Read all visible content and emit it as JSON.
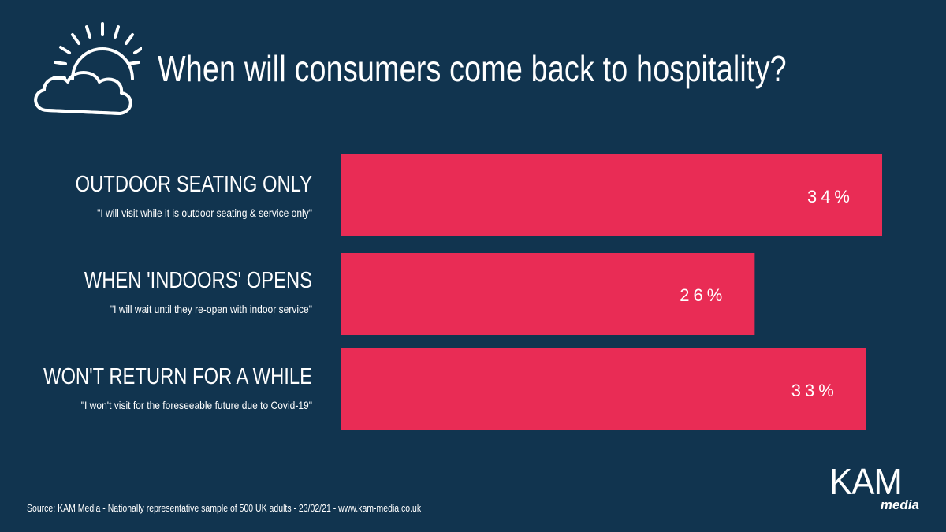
{
  "title": "When will consumers come back to hospitality?",
  "chart_data": {
    "type": "bar",
    "orientation": "horizontal",
    "title": "When will consumers come back to hospitality?",
    "categories": [
      "OUTDOOR SEATING ONLY",
      "WHEN 'INDOORS' OPENS",
      "WON'T RETURN FOR A WHILE"
    ],
    "subtitles": [
      "\"I will visit while it is outdoor seating & service only\"",
      "\"I will wait until they re-open with indoor service\"",
      "\"I won't visit for the foreseeable future due to Covid-19\""
    ],
    "values": [
      34,
      26,
      33
    ],
    "value_labels": [
      "34%",
      "26%",
      "33%"
    ],
    "unit": "%",
    "xlim": [
      0,
      34
    ],
    "grid": false,
    "bar_color": "#e92c55",
    "background_color": "#11344f"
  },
  "footer": {
    "source": "Source: KAM Media - Nationally representative sample of 500 UK adults - 23/02/21 - www.kam-media.co.uk"
  },
  "brand": {
    "name": "KAM",
    "tagline": "media"
  },
  "icons": {
    "header": "sun-behind-cloud-icon"
  }
}
